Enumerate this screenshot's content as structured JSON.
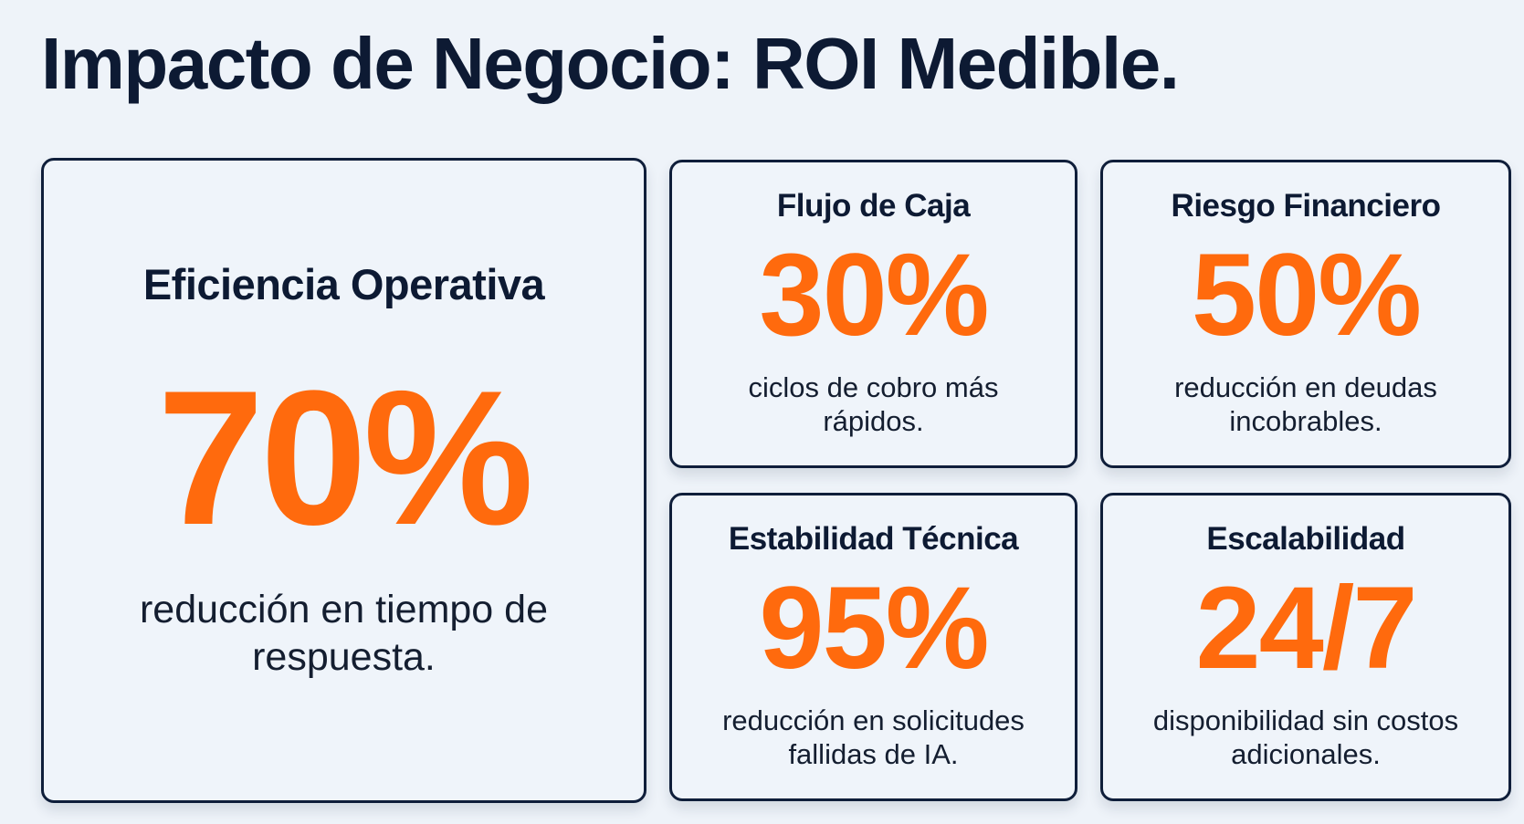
{
  "page": {
    "title": "Impacto de Negocio: ROI Medible."
  },
  "colors": {
    "title": "#0d1a33",
    "accent": "#ff6a0d",
    "card_border": "#0f1e3a",
    "background": "#eef3f9"
  },
  "cards": [
    {
      "title": "Eficiencia Operativa",
      "value": "70%",
      "description": "reducción en tiempo de respuesta."
    },
    {
      "title": "Flujo de Caja",
      "value": "30%",
      "description": "ciclos de cobro más rápidos."
    },
    {
      "title": "Riesgo Financiero",
      "value": "50%",
      "description": "reducción en deudas incobrables."
    },
    {
      "title": "Estabilidad Técnica",
      "value": "95%",
      "description": "reducción en solicitudes fallidas de IA."
    },
    {
      "title": "Escalabilidad",
      "value": "24/7",
      "description": "disponibilidad sin costos adicionales."
    }
  ]
}
